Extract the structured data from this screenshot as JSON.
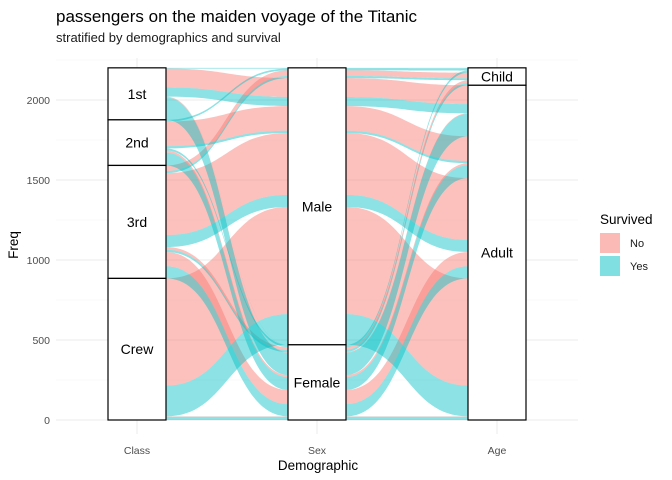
{
  "chart_data": {
    "type": "alluvial",
    "title": "passengers on the maiden voyage of the Titanic",
    "subtitle": "stratified by demographics and survival",
    "xlabel": "Demographic",
    "ylabel": "Freq",
    "axes": [
      "Class",
      "Sex",
      "Age"
    ],
    "ylim": [
      0,
      2201
    ],
    "yticks": [
      0,
      500,
      1000,
      1500,
      2000
    ],
    "grid": true,
    "legend": {
      "title": "Survived",
      "position": "right",
      "entries": [
        {
          "label": "No",
          "color": "#F8766D"
        },
        {
          "label": "Yes",
          "color": "#00BFC4"
        }
      ]
    },
    "strata": {
      "Class": [
        {
          "label": "1st",
          "value": 325
        },
        {
          "label": "2nd",
          "value": 285
        },
        {
          "label": "3rd",
          "value": 706
        },
        {
          "label": "Crew",
          "value": 885
        }
      ],
      "Sex": [
        {
          "label": "Male",
          "value": 1731
        },
        {
          "label": "Female",
          "value": 470
        }
      ],
      "Age": [
        {
          "label": "Child",
          "value": 109
        },
        {
          "label": "Adult",
          "value": 2092
        }
      ]
    },
    "flows": [
      {
        "Class": "1st",
        "Sex": "Male",
        "Age": "Child",
        "Survived": "No",
        "Freq": 0
      },
      {
        "Class": "2nd",
        "Sex": "Male",
        "Age": "Child",
        "Survived": "No",
        "Freq": 0
      },
      {
        "Class": "3rd",
        "Sex": "Male",
        "Age": "Child",
        "Survived": "No",
        "Freq": 35
      },
      {
        "Class": "Crew",
        "Sex": "Male",
        "Age": "Child",
        "Survived": "No",
        "Freq": 0
      },
      {
        "Class": "1st",
        "Sex": "Female",
        "Age": "Child",
        "Survived": "No",
        "Freq": 0
      },
      {
        "Class": "2nd",
        "Sex": "Female",
        "Age": "Child",
        "Survived": "No",
        "Freq": 0
      },
      {
        "Class": "3rd",
        "Sex": "Female",
        "Age": "Child",
        "Survived": "No",
        "Freq": 17
      },
      {
        "Class": "Crew",
        "Sex": "Female",
        "Age": "Child",
        "Survived": "No",
        "Freq": 0
      },
      {
        "Class": "1st",
        "Sex": "Male",
        "Age": "Adult",
        "Survived": "No",
        "Freq": 118
      },
      {
        "Class": "2nd",
        "Sex": "Male",
        "Age": "Adult",
        "Survived": "No",
        "Freq": 154
      },
      {
        "Class": "3rd",
        "Sex": "Male",
        "Age": "Adult",
        "Survived": "No",
        "Freq": 387
      },
      {
        "Class": "Crew",
        "Sex": "Male",
        "Age": "Adult",
        "Survived": "No",
        "Freq": 670
      },
      {
        "Class": "1st",
        "Sex": "Female",
        "Age": "Adult",
        "Survived": "No",
        "Freq": 4
      },
      {
        "Class": "2nd",
        "Sex": "Female",
        "Age": "Adult",
        "Survived": "No",
        "Freq": 13
      },
      {
        "Class": "3rd",
        "Sex": "Female",
        "Age": "Adult",
        "Survived": "No",
        "Freq": 89
      },
      {
        "Class": "Crew",
        "Sex": "Female",
        "Age": "Adult",
        "Survived": "No",
        "Freq": 3
      },
      {
        "Class": "1st",
        "Sex": "Male",
        "Age": "Child",
        "Survived": "Yes",
        "Freq": 5
      },
      {
        "Class": "2nd",
        "Sex": "Male",
        "Age": "Child",
        "Survived": "Yes",
        "Freq": 11
      },
      {
        "Class": "3rd",
        "Sex": "Male",
        "Age": "Child",
        "Survived": "Yes",
        "Freq": 13
      },
      {
        "Class": "Crew",
        "Sex": "Male",
        "Age": "Child",
        "Survived": "Yes",
        "Freq": 0
      },
      {
        "Class": "1st",
        "Sex": "Female",
        "Age": "Child",
        "Survived": "Yes",
        "Freq": 1
      },
      {
        "Class": "2nd",
        "Sex": "Female",
        "Age": "Child",
        "Survived": "Yes",
        "Freq": 13
      },
      {
        "Class": "3rd",
        "Sex": "Female",
        "Age": "Child",
        "Survived": "Yes",
        "Freq": 14
      },
      {
        "Class": "Crew",
        "Sex": "Female",
        "Age": "Child",
        "Survived": "Yes",
        "Freq": 0
      },
      {
        "Class": "1st",
        "Sex": "Male",
        "Age": "Adult",
        "Survived": "Yes",
        "Freq": 57
      },
      {
        "Class": "2nd",
        "Sex": "Male",
        "Age": "Adult",
        "Survived": "Yes",
        "Freq": 14
      },
      {
        "Class": "3rd",
        "Sex": "Male",
        "Age": "Adult",
        "Survived": "Yes",
        "Freq": 75
      },
      {
        "Class": "Crew",
        "Sex": "Male",
        "Age": "Adult",
        "Survived": "Yes",
        "Freq": 192
      },
      {
        "Class": "1st",
        "Sex": "Female",
        "Age": "Adult",
        "Survived": "Yes",
        "Freq": 140
      },
      {
        "Class": "2nd",
        "Sex": "Female",
        "Age": "Adult",
        "Survived": "Yes",
        "Freq": 80
      },
      {
        "Class": "3rd",
        "Sex": "Female",
        "Age": "Adult",
        "Survived": "Yes",
        "Freq": 76
      },
      {
        "Class": "Crew",
        "Sex": "Female",
        "Age": "Adult",
        "Survived": "Yes",
        "Freq": 20
      }
    ]
  }
}
